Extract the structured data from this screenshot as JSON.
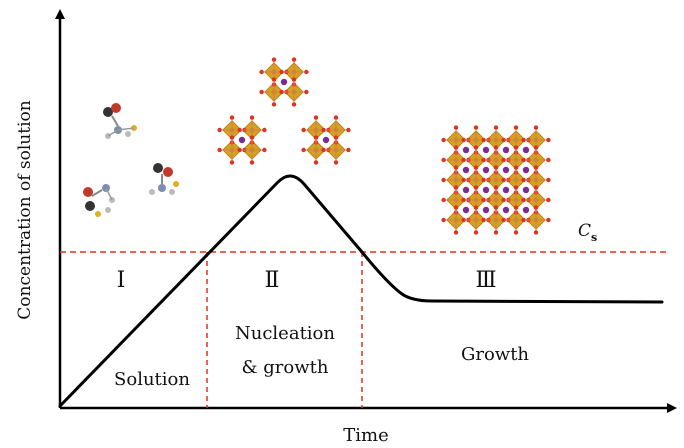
{
  "axes": {
    "y_label": "Concentration of solution",
    "x_label": "Time"
  },
  "threshold": {
    "symbol": "C",
    "subscript": "s",
    "color": "#e0321f"
  },
  "regions": [
    {
      "numeral": "Ⅰ",
      "line1": "Solution",
      "line2": ""
    },
    {
      "numeral": "Ⅱ",
      "line1": "Nucleation",
      "line2": "& growth"
    },
    {
      "numeral": "Ⅲ",
      "line1": "Growth",
      "line2": ""
    }
  ],
  "colors": {
    "curve": "#000000",
    "axis": "#000000",
    "dashed": "#e0321f",
    "crystal_gold": "#d6a21e",
    "crystal_node": "#e0321f",
    "crystal_center": "#7b2d8e"
  },
  "icons": {
    "molecules": "solvated-molecule-icon",
    "small_clusters": "crystal-nucleus-icon",
    "large_lattice": "crystal-lattice-icon"
  }
}
